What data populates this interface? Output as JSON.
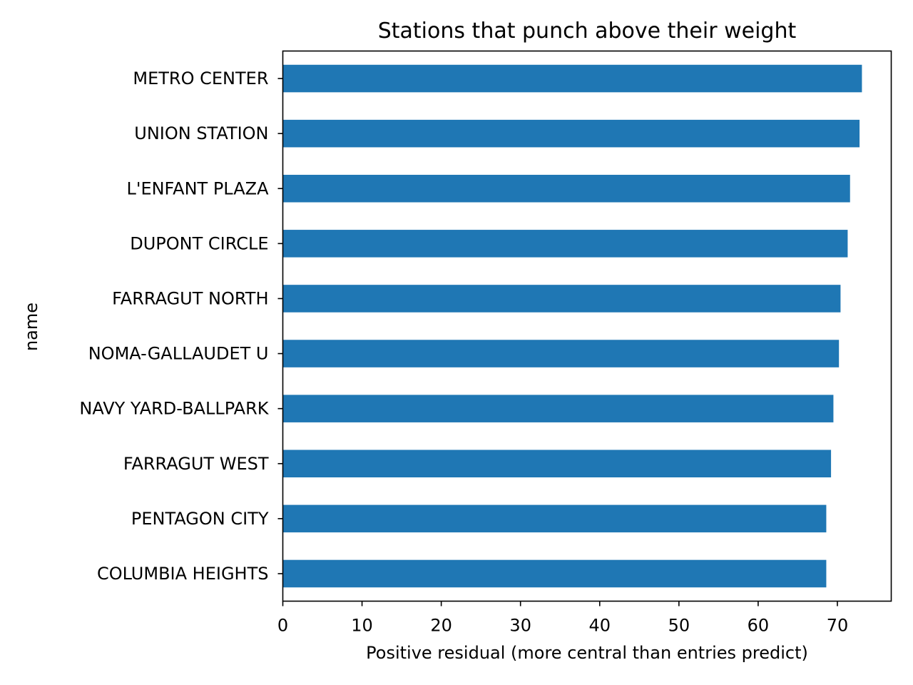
{
  "chart_data": {
    "type": "bar",
    "orientation": "horizontal",
    "title": "Stations that punch above their weight",
    "xlabel": "Positive residual (more central than entries predict)",
    "ylabel": "name",
    "categories": [
      "METRO CENTER",
      "UNION STATION",
      "L'ENFANT PLAZA",
      "DUPONT CIRCLE",
      "FARRAGUT NORTH",
      "NOMA-GALLAUDET U",
      "NAVY YARD-BALLPARK",
      "FARRAGUT WEST",
      "PENTAGON CITY",
      "COLUMBIA HEIGHTS"
    ],
    "values": [
      73.1,
      72.8,
      71.6,
      71.3,
      70.4,
      70.2,
      69.5,
      69.2,
      68.6,
      68.6
    ],
    "xlim": [
      0,
      76.8
    ],
    "xticks": [
      0,
      10,
      20,
      30,
      40,
      50,
      60,
      70
    ],
    "grid": false,
    "legend": "none",
    "bar_color": "#1f77b4"
  }
}
